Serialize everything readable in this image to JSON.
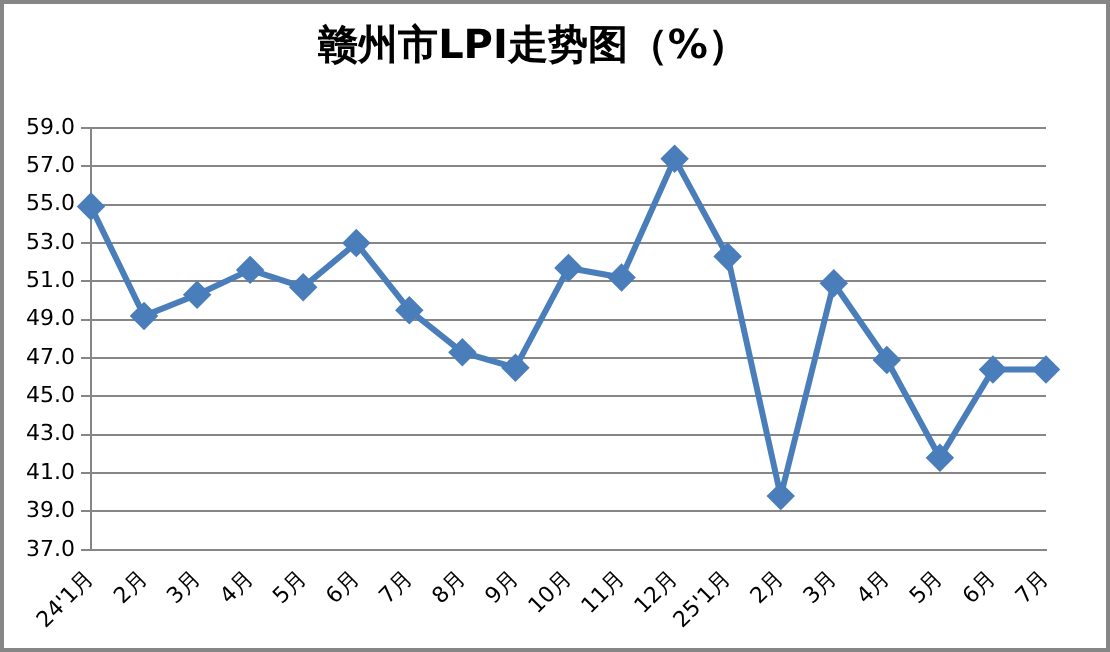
{
  "chart_data": {
    "type": "line",
    "title": "赣州市LPI走势图（%）",
    "categories": [
      "24'1月",
      "2月",
      "3月",
      "4月",
      "5月",
      "6月",
      "7月",
      "8月",
      "9月",
      "10月",
      "11月",
      "12月",
      "25'1月",
      "2月",
      "3月",
      "4月",
      "5月",
      "6月",
      "7月"
    ],
    "series": [
      {
        "color": "#4a7ebb",
        "values": [
          54.9,
          49.2,
          50.3,
          51.6,
          50.7,
          53.0,
          49.5,
          47.3,
          46.5,
          51.7,
          51.2,
          57.4,
          52.3,
          39.8,
          50.9,
          46.9,
          41.8,
          46.4,
          46.4
        ]
      }
    ],
    "ylim": [
      37,
      59
    ],
    "yticks": [
      {
        "value": 37,
        "label": "37.0"
      },
      {
        "value": 39,
        "label": "39.0"
      },
      {
        "value": 41,
        "label": "41.0"
      },
      {
        "value": 43,
        "label": "43.0"
      },
      {
        "value": 45,
        "label": "45.0"
      },
      {
        "value": 47,
        "label": "47.0"
      },
      {
        "value": 49,
        "label": "49.0"
      },
      {
        "value": 51,
        "label": "51.0"
      },
      {
        "value": 53,
        "label": "53.0"
      },
      {
        "value": 55,
        "label": "55.0"
      },
      {
        "value": 57,
        "label": "57.0"
      },
      {
        "value": 59,
        "label": "59.0"
      }
    ],
    "grid": "y",
    "legend": false,
    "marker": "diamond",
    "line_style": "solid"
  }
}
